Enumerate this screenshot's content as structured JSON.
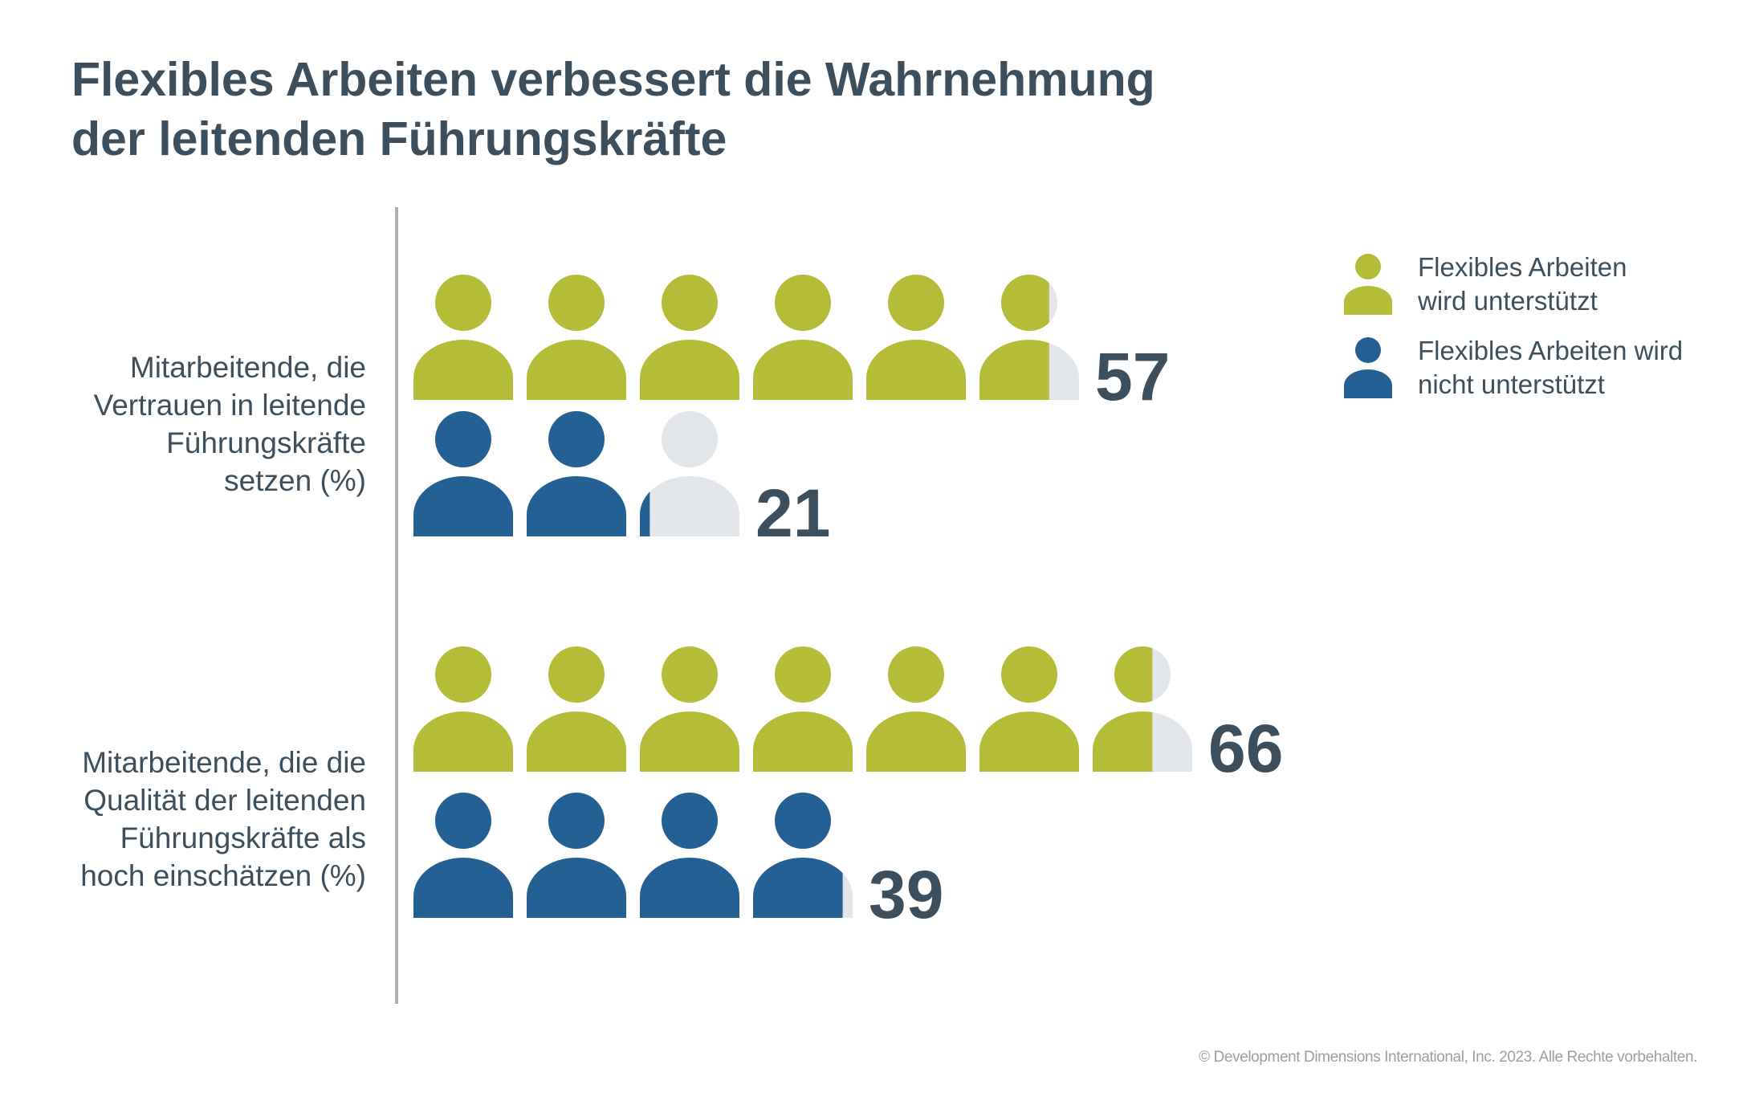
{
  "chart_data": {
    "type": "bar",
    "title": [
      "Flexibles Arbeiten verbessert die Wahrnehmung",
      "der leitenden Führungskräfte"
    ],
    "categories": [
      [
        "Mitarbeitende, die",
        "Vertrauen in leitende",
        "Führungskräfte",
        "setzen (%)"
      ],
      [
        "Mitarbeitende, die die",
        "Qualität der leitenden",
        "Führungskräfte als",
        "hoch einschätzen (%)"
      ]
    ],
    "series": [
      {
        "name": [
          "Flexibles Arbeiten",
          "wird unterstützt"
        ],
        "color": "#b5bd38",
        "values": [
          57,
          66
        ]
      },
      {
        "name": [
          "Flexibles Arbeiten wird",
          "nicht unterstützt"
        ],
        "color": "#246093",
        "values": [
          21,
          39
        ]
      }
    ],
    "unit_per_icon": 10,
    "empty_color": "#e3e6ea",
    "legend_position": "top-right",
    "copyright": "© Development Dimensions International, Inc. 2023. Alle Rechte vorbehalten."
  }
}
